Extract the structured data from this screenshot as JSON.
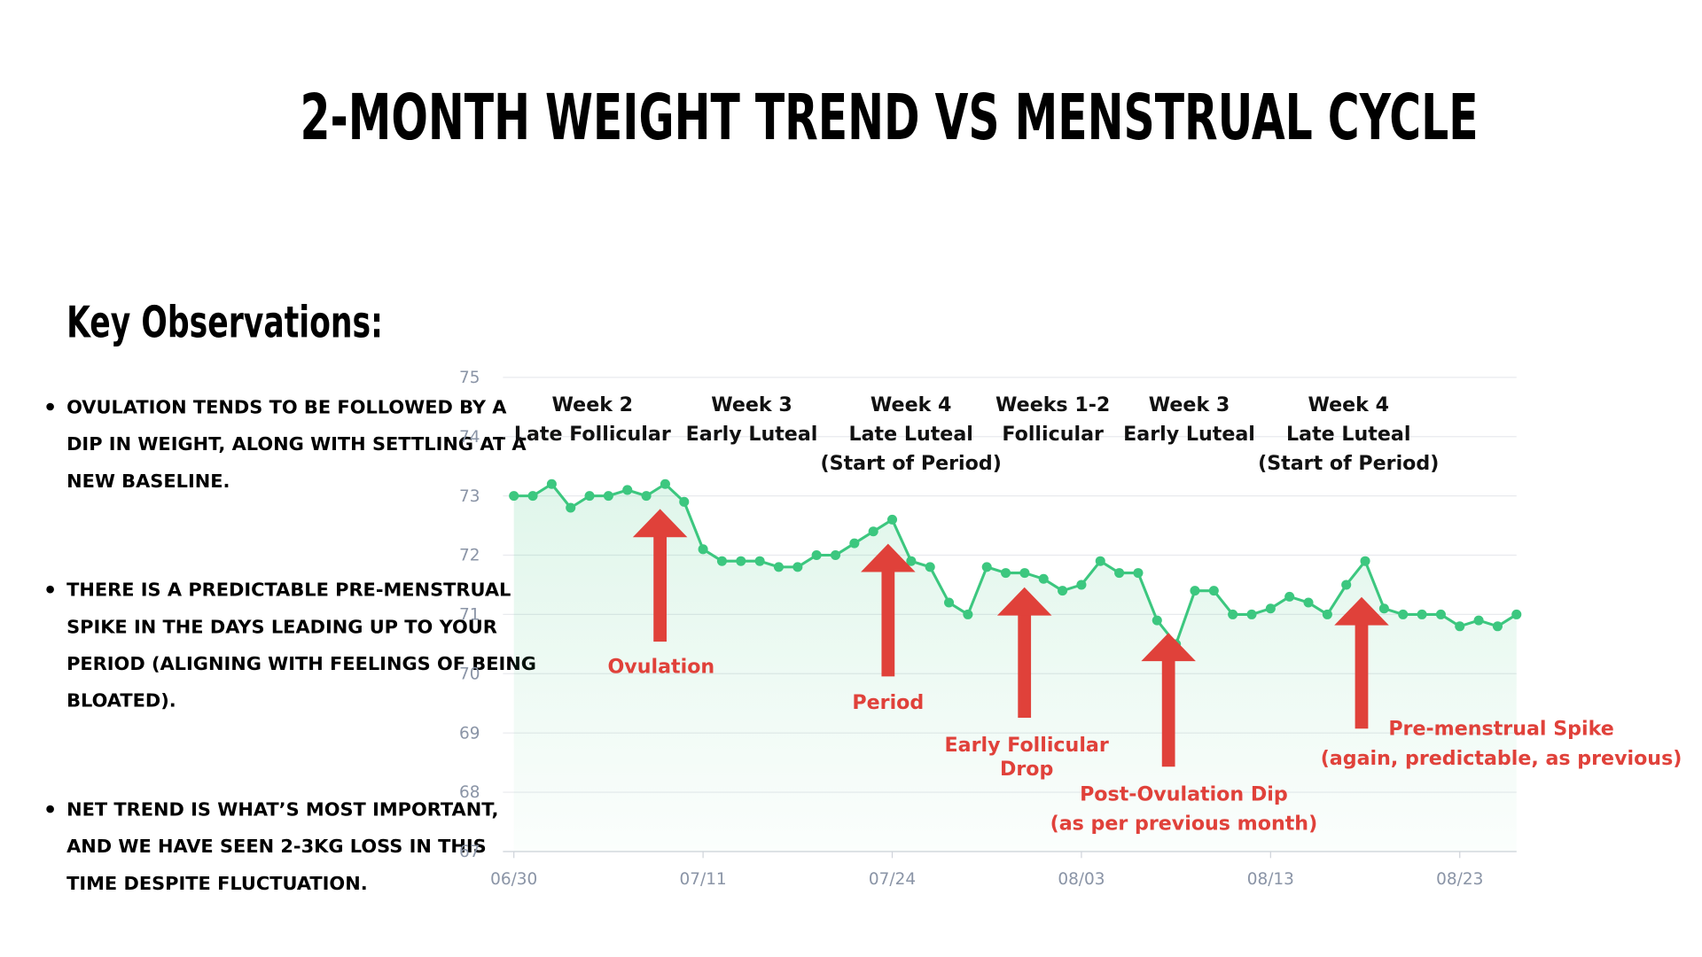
{
  "chart_data": {
    "type": "line",
    "title": "2-MONTH WEIGHT TREND VS MENSTRUAL CYCLE",
    "observations_heading": "Key Observations:",
    "observations": [
      [
        "OVULATION TENDS TO BE FOLLOWED BY A",
        "DIP IN WEIGHT, ALONG WITH SETTLING AT A",
        "NEW BASELINE."
      ],
      [
        "THERE IS A PREDICTABLE PRE-MENSTRUAL",
        "SPIKE IN THE DAYS LEADING UP TO YOUR",
        "PERIOD (ALIGNING WITH FEELINGS OF BEING",
        "BLOATED)."
      ],
      [
        "NET TREND IS WHAT’S MOST IMPORTANT,",
        "AND WE HAVE SEEN 2-3KG LOSS IN THIS",
        "TIME DESPITE FLUCTUATION."
      ]
    ],
    "categories": [
      "06/30",
      null,
      null,
      null,
      null,
      null,
      null,
      null,
      null,
      null,
      "07/11",
      null,
      null,
      null,
      null,
      null,
      null,
      null,
      null,
      null,
      "07/24",
      null,
      null,
      null,
      null,
      null,
      null,
      null,
      null,
      null,
      "08/03",
      null,
      null,
      null,
      null,
      null,
      null,
      null,
      null,
      null,
      "08/13",
      null,
      null,
      null,
      null,
      null,
      null,
      null,
      null,
      null,
      "08/23",
      null,
      null,
      null
    ],
    "values": [
      73.0,
      73.0,
      73.2,
      72.8,
      73.0,
      73.0,
      73.1,
      73.0,
      73.2,
      72.9,
      72.1,
      71.9,
      71.9,
      71.9,
      71.8,
      71.8,
      72.0,
      72.0,
      72.2,
      72.4,
      72.6,
      71.9,
      71.8,
      71.2,
      71.0,
      71.8,
      71.7,
      71.7,
      71.6,
      71.4,
      71.5,
      71.9,
      71.7,
      71.7,
      70.9,
      70.5,
      71.4,
      71.4,
      71.0,
      71.0,
      71.1,
      71.3,
      71.2,
      71.0,
      71.5,
      71.9,
      71.1,
      71.0,
      71.0,
      71.0,
      70.8,
      70.9,
      70.8,
      71.0
    ],
    "color": "#3cc77f",
    "ylim": [
      67,
      75
    ],
    "yticks": [
      67,
      68,
      69,
      70,
      71,
      72,
      73,
      74,
      75
    ],
    "grid": true,
    "phases": [
      [
        "Week 2",
        "Late Follicular"
      ],
      [
        "Week 3",
        "Early Luteal"
      ],
      [
        "Week 4",
        "Late Luteal",
        "(Start of Period)"
      ],
      [
        "Weeks 1-2",
        "Follicular"
      ],
      [
        "Week 3",
        "Early Luteal"
      ],
      [
        "Week 4",
        "Late Luteal",
        "(Start of Period)"
      ]
    ],
    "annotations": [
      [
        "Ovulation"
      ],
      [
        "Period"
      ],
      [
        "Early Follicular",
        "Drop"
      ],
      [
        "Post-Ovulation Dip",
        "(as per previous month)"
      ],
      [
        "Pre-menstrual Spike",
        "(again, predictable, as previous)"
      ]
    ],
    "annotation_color": "#e0413a"
  }
}
